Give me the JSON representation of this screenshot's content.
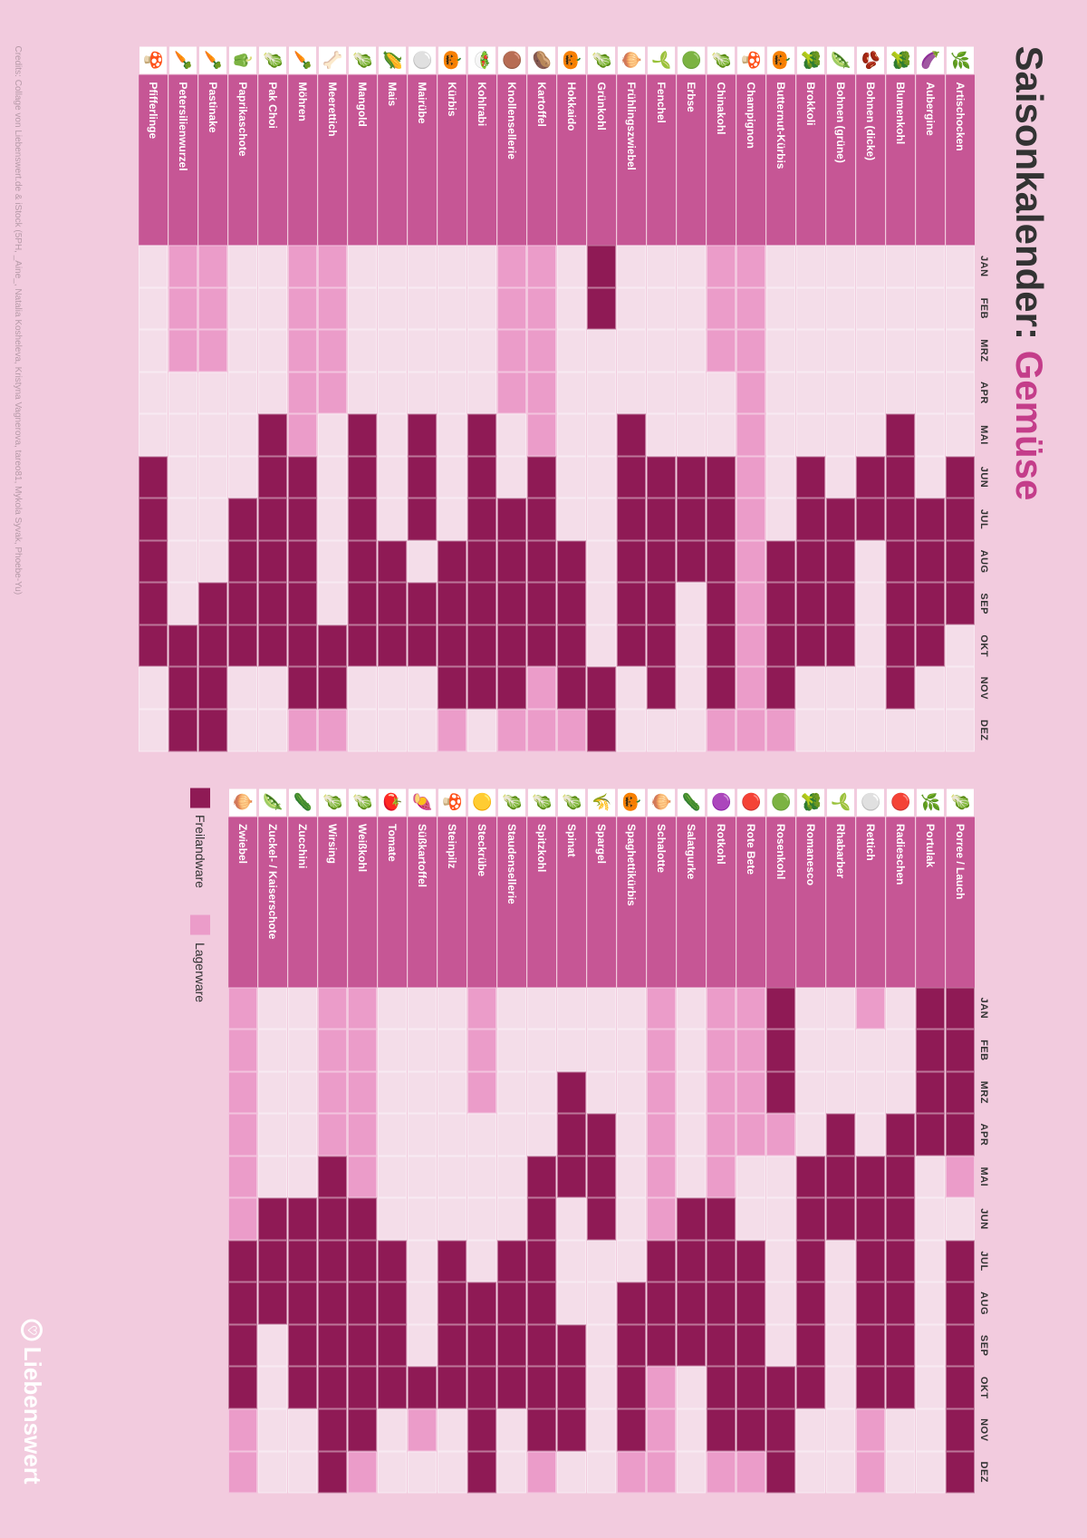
{
  "title_pre": "Saisonkalender: ",
  "title_accent": "Gemüse",
  "months": [
    "JAN",
    "FEB",
    "MRZ",
    "APR",
    "MAI",
    "JUN",
    "JUL",
    "AUG",
    "SEP",
    "OKT",
    "NOV",
    "DEZ"
  ],
  "colors": {
    "bg": "#f2cbde",
    "header": "#c65695",
    "empty": "#f4dde9",
    "lager": "#eb9cc9",
    "frei": "#8f1a55",
    "accent": "#c43d8a"
  },
  "legend": [
    {
      "label": "Freilandware",
      "color": "#8f1a55"
    },
    {
      "label": "Lagerware",
      "color": "#eb9cc9"
    }
  ],
  "brand": "Liebenswert",
  "credits": "Credits: Collage von Liebenswert.de & iStock (5PH, _Aine_, Natalia Kosheleva, Kristyna Vagnerova, tareo81, Mykola Syvak, Phoebe-Yu)",
  "left": [
    {
      "n": "Artischocken",
      "i": "🌿",
      "m": [
        0,
        0,
        0,
        0,
        0,
        2,
        2,
        2,
        2,
        0,
        0,
        0
      ]
    },
    {
      "n": "Aubergine",
      "i": "🍆",
      "m": [
        0,
        0,
        0,
        0,
        0,
        0,
        2,
        2,
        2,
        2,
        0,
        0
      ]
    },
    {
      "n": "Blumenkohl",
      "i": "🥦",
      "m": [
        0,
        0,
        0,
        0,
        2,
        2,
        2,
        2,
        2,
        2,
        2,
        0
      ]
    },
    {
      "n": "Bohnen (dicke)",
      "i": "🫘",
      "m": [
        0,
        0,
        0,
        0,
        0,
        2,
        2,
        0,
        0,
        0,
        0,
        0
      ]
    },
    {
      "n": "Bohnen (grüne)",
      "i": "🫛",
      "m": [
        0,
        0,
        0,
        0,
        0,
        0,
        2,
        2,
        2,
        2,
        0,
        0
      ]
    },
    {
      "n": "Brokkoli",
      "i": "🥦",
      "m": [
        0,
        0,
        0,
        0,
        0,
        2,
        2,
        2,
        2,
        2,
        0,
        0
      ]
    },
    {
      "n": "Butternut-Kürbis",
      "i": "🎃",
      "m": [
        0,
        0,
        0,
        0,
        0,
        0,
        0,
        2,
        2,
        2,
        2,
        1
      ]
    },
    {
      "n": "Champignon",
      "i": "🍄",
      "m": [
        1,
        1,
        1,
        1,
        1,
        1,
        1,
        1,
        1,
        1,
        1,
        1
      ]
    },
    {
      "n": "Chinakohl",
      "i": "🥬",
      "m": [
        1,
        1,
        1,
        0,
        0,
        2,
        2,
        2,
        2,
        2,
        2,
        1
      ]
    },
    {
      "n": "Erbse",
      "i": "🟢",
      "m": [
        0,
        0,
        0,
        0,
        0,
        2,
        2,
        2,
        0,
        0,
        0,
        0
      ]
    },
    {
      "n": "Fenchel",
      "i": "🌱",
      "m": [
        0,
        0,
        0,
        0,
        0,
        2,
        2,
        2,
        2,
        2,
        2,
        0
      ]
    },
    {
      "n": "Frühlingszwiebel",
      "i": "🧅",
      "m": [
        0,
        0,
        0,
        0,
        2,
        2,
        2,
        2,
        2,
        2,
        0,
        0
      ]
    },
    {
      "n": "Grünkohl",
      "i": "🥬",
      "m": [
        2,
        2,
        0,
        0,
        0,
        0,
        0,
        0,
        0,
        0,
        2,
        2
      ]
    },
    {
      "n": "Hokkaido",
      "i": "🎃",
      "m": [
        0,
        0,
        0,
        0,
        0,
        0,
        0,
        2,
        2,
        2,
        2,
        1
      ]
    },
    {
      "n": "Kartoffel",
      "i": "🥔",
      "m": [
        1,
        1,
        1,
        1,
        1,
        2,
        2,
        2,
        2,
        2,
        1,
        1
      ]
    },
    {
      "n": "Knollensellerie",
      "i": "🟤",
      "m": [
        1,
        1,
        1,
        1,
        0,
        0,
        2,
        2,
        2,
        2,
        2,
        1
      ]
    },
    {
      "n": "Kohlrabi",
      "i": "🥗",
      "m": [
        0,
        0,
        0,
        0,
        2,
        2,
        2,
        2,
        2,
        2,
        2,
        0
      ]
    },
    {
      "n": "Kürbis",
      "i": "🎃",
      "m": [
        0,
        0,
        0,
        0,
        0,
        0,
        0,
        2,
        2,
        2,
        2,
        1
      ]
    },
    {
      "n": "Mairübe",
      "i": "⚪",
      "m": [
        0,
        0,
        0,
        0,
        2,
        2,
        2,
        0,
        2,
        2,
        0,
        0
      ]
    },
    {
      "n": "Mais",
      "i": "🌽",
      "m": [
        0,
        0,
        0,
        0,
        0,
        0,
        0,
        2,
        2,
        2,
        0,
        0
      ]
    },
    {
      "n": "Mangold",
      "i": "🥬",
      "m": [
        0,
        0,
        0,
        0,
        2,
        2,
        2,
        2,
        2,
        2,
        0,
        0
      ]
    },
    {
      "n": "Meerettich",
      "i": "🦴",
      "m": [
        1,
        1,
        1,
        1,
        0,
        0,
        0,
        0,
        0,
        2,
        2,
        1
      ]
    },
    {
      "n": "Möhren",
      "i": "🥕",
      "m": [
        1,
        1,
        1,
        1,
        1,
        2,
        2,
        2,
        2,
        2,
        2,
        1
      ]
    },
    {
      "n": "Pak Choi",
      "i": "🥬",
      "m": [
        0,
        0,
        0,
        0,
        2,
        2,
        2,
        2,
        2,
        2,
        0,
        0
      ]
    },
    {
      "n": "Paprikaschote",
      "i": "🫑",
      "m": [
        0,
        0,
        0,
        0,
        0,
        0,
        2,
        2,
        2,
        2,
        0,
        0
      ]
    },
    {
      "n": "Pastinake",
      "i": "🥕",
      "m": [
        1,
        1,
        1,
        0,
        0,
        0,
        0,
        0,
        2,
        2,
        2,
        2
      ]
    },
    {
      "n": "Petersilienwurzel",
      "i": "🥕",
      "m": [
        1,
        1,
        1,
        0,
        0,
        0,
        0,
        0,
        0,
        2,
        2,
        2
      ]
    },
    {
      "n": "Pfifferlinge",
      "i": "🍄",
      "m": [
        0,
        0,
        0,
        0,
        0,
        2,
        2,
        2,
        2,
        2,
        0,
        0
      ]
    }
  ],
  "right": [
    {
      "n": "Porree / Lauch",
      "i": "🥬",
      "m": [
        2,
        2,
        2,
        2,
        1,
        0,
        2,
        2,
        2,
        2,
        2,
        2
      ]
    },
    {
      "n": "Portulak",
      "i": "🌿",
      "m": [
        2,
        2,
        2,
        2,
        0,
        0,
        0,
        0,
        0,
        0,
        0,
        0
      ]
    },
    {
      "n": "Radieschen",
      "i": "🔴",
      "m": [
        0,
        0,
        0,
        2,
        2,
        2,
        2,
        2,
        2,
        2,
        0,
        0
      ]
    },
    {
      "n": "Rettich",
      "i": "⚪",
      "m": [
        1,
        0,
        0,
        0,
        2,
        2,
        2,
        2,
        2,
        2,
        1,
        1
      ]
    },
    {
      "n": "Rhabarber",
      "i": "🌱",
      "m": [
        0,
        0,
        0,
        2,
        2,
        2,
        0,
        0,
        0,
        0,
        0,
        0
      ]
    },
    {
      "n": "Romanesco",
      "i": "🥦",
      "m": [
        0,
        0,
        0,
        0,
        2,
        2,
        2,
        2,
        2,
        2,
        0,
        0
      ]
    },
    {
      "n": "Rosenkohl",
      "i": "🟢",
      "m": [
        2,
        2,
        2,
        1,
        0,
        0,
        0,
        0,
        0,
        2,
        2,
        2
      ]
    },
    {
      "n": "Rote Bete",
      "i": "🔴",
      "m": [
        1,
        1,
        1,
        1,
        0,
        0,
        2,
        2,
        2,
        2,
        2,
        1
      ]
    },
    {
      "n": "Rotkohl",
      "i": "🟣",
      "m": [
        1,
        1,
        1,
        1,
        1,
        2,
        2,
        2,
        2,
        2,
        2,
        1
      ]
    },
    {
      "n": "Salatgurke",
      "i": "🥒",
      "m": [
        0,
        0,
        0,
        0,
        0,
        2,
        2,
        2,
        2,
        0,
        0,
        0
      ]
    },
    {
      "n": "Schalotte",
      "i": "🧅",
      "m": [
        1,
        1,
        1,
        1,
        1,
        1,
        2,
        2,
        2,
        1,
        1,
        1
      ]
    },
    {
      "n": "Spaghettikürbis",
      "i": "🎃",
      "m": [
        0,
        0,
        0,
        0,
        0,
        0,
        0,
        2,
        2,
        2,
        2,
        1
      ]
    },
    {
      "n": "Spargel",
      "i": "🌾",
      "m": [
        0,
        0,
        0,
        2,
        2,
        2,
        0,
        0,
        0,
        0,
        0,
        0
      ]
    },
    {
      "n": "Spinat",
      "i": "🥬",
      "m": [
        0,
        0,
        2,
        2,
        2,
        0,
        0,
        0,
        2,
        2,
        2,
        0
      ]
    },
    {
      "n": "Spitzkohl",
      "i": "🥬",
      "m": [
        0,
        0,
        0,
        0,
        2,
        2,
        2,
        2,
        2,
        2,
        2,
        1
      ]
    },
    {
      "n": "Staudensellerie",
      "i": "🥬",
      "m": [
        0,
        0,
        0,
        0,
        0,
        0,
        2,
        2,
        2,
        2,
        0,
        0
      ]
    },
    {
      "n": "Steckrübe",
      "i": "🟡",
      "m": [
        1,
        1,
        1,
        0,
        0,
        0,
        0,
        2,
        2,
        2,
        2,
        2
      ]
    },
    {
      "n": "Steinpilz",
      "i": "🍄",
      "m": [
        0,
        0,
        0,
        0,
        0,
        0,
        2,
        2,
        2,
        2,
        0,
        0
      ]
    },
    {
      "n": "Süßkartoffel",
      "i": "🍠",
      "m": [
        0,
        0,
        0,
        0,
        0,
        0,
        0,
        0,
        0,
        2,
        1,
        0
      ]
    },
    {
      "n": "Tomate",
      "i": "🍅",
      "m": [
        0,
        0,
        0,
        0,
        0,
        0,
        2,
        2,
        2,
        2,
        0,
        0
      ]
    },
    {
      "n": "Weißkohl",
      "i": "🥬",
      "m": [
        1,
        1,
        1,
        1,
        1,
        2,
        2,
        2,
        2,
        2,
        2,
        1
      ]
    },
    {
      "n": "Wirsing",
      "i": "🥬",
      "m": [
        1,
        1,
        1,
        1,
        2,
        2,
        2,
        2,
        2,
        2,
        2,
        2
      ]
    },
    {
      "n": "Zucchini",
      "i": "🥒",
      "m": [
        0,
        0,
        0,
        0,
        0,
        2,
        2,
        2,
        2,
        2,
        0,
        0
      ]
    },
    {
      "n": "Zuckel- / Kaiserschote",
      "i": "🫛",
      "m": [
        0,
        0,
        0,
        0,
        0,
        2,
        2,
        2,
        0,
        0,
        0,
        0
      ]
    },
    {
      "n": "Zwiebel",
      "i": "🧅",
      "m": [
        1,
        1,
        1,
        1,
        1,
        1,
        2,
        2,
        2,
        2,
        1,
        1
      ]
    }
  ]
}
